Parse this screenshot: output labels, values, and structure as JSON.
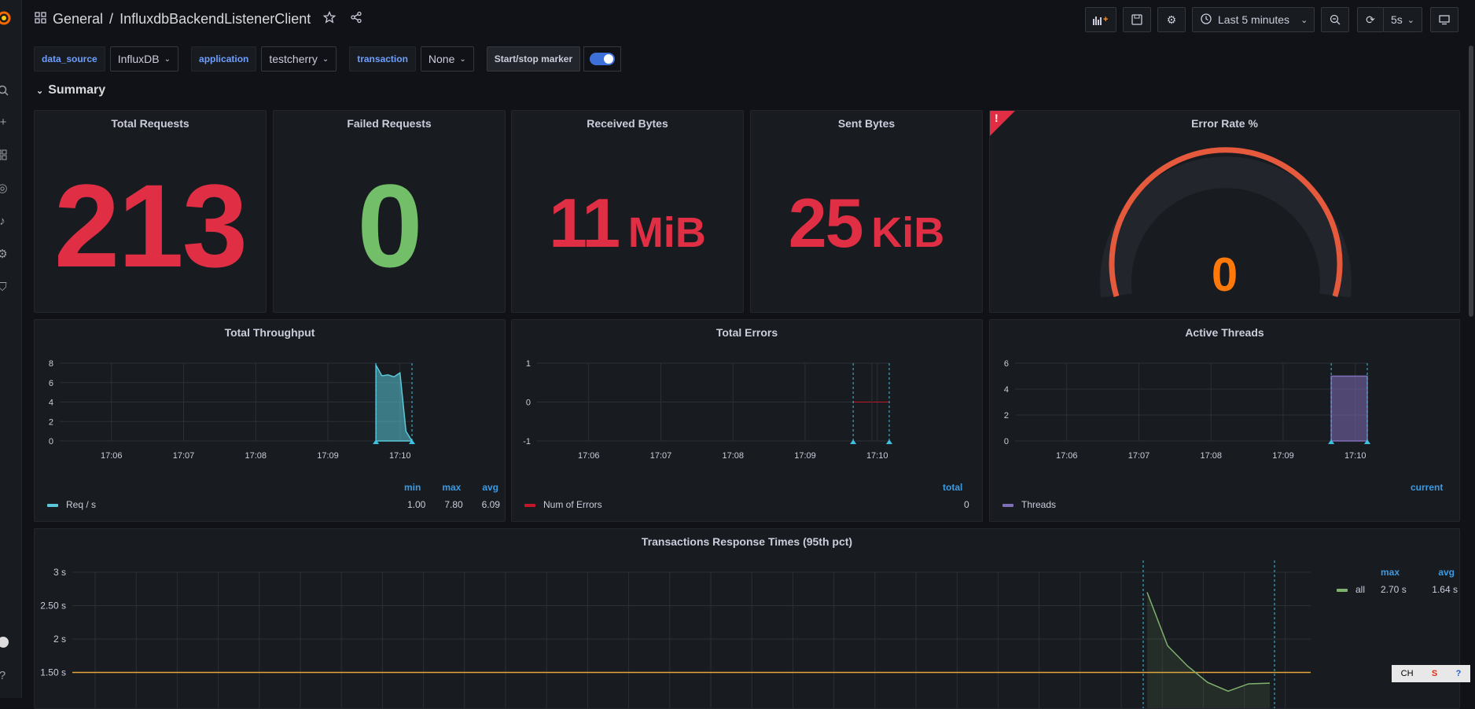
{
  "breadcrumb": {
    "folder": "General",
    "separator": "/",
    "dashboard": "InfluxdbBackendListenerClient"
  },
  "toolbar": {
    "time_range": "Last 5 minutes",
    "refresh": "5s"
  },
  "variables": [
    {
      "label": "data_source",
      "value": "InfluxDB"
    },
    {
      "label": "application",
      "value": "testcherry"
    },
    {
      "label": "transaction",
      "value": "None"
    }
  ],
  "marker": {
    "label": "Start/stop marker",
    "enabled": true
  },
  "row": {
    "title": "Summary"
  },
  "stats": {
    "total_requests": {
      "title": "Total Requests",
      "value": "213",
      "color": "#e02f44"
    },
    "failed_requests": {
      "title": "Failed Requests",
      "value": "0",
      "color": "#73bf69"
    },
    "received_bytes": {
      "title": "Received Bytes",
      "value": "11",
      "unit": "MiB",
      "color": "#e02f44"
    },
    "sent_bytes": {
      "title": "Sent Bytes",
      "value": "25",
      "unit": "KiB",
      "color": "#e02f44"
    },
    "error_rate": {
      "title": "Error Rate %",
      "value": "0",
      "color": "#ff780a",
      "alert_mark": "!"
    }
  },
  "throughput": {
    "title": "Total Throughput",
    "legend_headers": [
      "min",
      "max",
      "avg"
    ],
    "series_name": "Req / s",
    "legend_values": [
      "1.00",
      "7.80",
      "6.09"
    ]
  },
  "errors": {
    "title": "Total Errors",
    "legend_header": "total",
    "series_name": "Num of Errors",
    "legend_value": "0"
  },
  "threads": {
    "title": "Active Threads",
    "legend_header": "current",
    "series_name": "Threads"
  },
  "response": {
    "title": "Transactions Response Times (95th pct)",
    "legend_headers": [
      "max",
      "avg"
    ],
    "series_name": "all",
    "legend_values": [
      "2.70 s",
      "1.64 s"
    ]
  },
  "tray": {
    "ime": "CH",
    "s": "S",
    "help": "?"
  },
  "chart_data": [
    {
      "type": "area",
      "title": "Total Throughput",
      "x_ticks": [
        "17:06",
        "17:07",
        "17:08",
        "17:09",
        "17:10"
      ],
      "y_ticks": [
        "0",
        "2",
        "4",
        "6",
        "8"
      ],
      "ylim": [
        0,
        8
      ],
      "series": [
        {
          "name": "Req / s",
          "color": "#5ac8d8",
          "x": [
            "17:09:40",
            "17:09:45",
            "17:09:50",
            "17:09:55",
            "17:10:00",
            "17:10:05",
            "17:10:10"
          ],
          "values": [
            7.8,
            6.7,
            6.8,
            6.6,
            7.0,
            1.0,
            0
          ]
        }
      ]
    },
    {
      "type": "line",
      "title": "Total Errors",
      "x_ticks": [
        "17:06",
        "17:07",
        "17:08",
        "17:09",
        "17:10"
      ],
      "y_ticks": [
        "-1",
        "0",
        "1"
      ],
      "ylim": [
        -1,
        1
      ],
      "series": [
        {
          "name": "Num of Errors",
          "color": "#c4162a",
          "x": [
            "17:09:40",
            "17:10:10"
          ],
          "values": [
            0,
            0
          ]
        }
      ]
    },
    {
      "type": "area",
      "title": "Active Threads",
      "x_ticks": [
        "17:06",
        "17:07",
        "17:08",
        "17:09",
        "17:10"
      ],
      "y_ticks": [
        "0",
        "2",
        "4",
        "6"
      ],
      "ylim": [
        0,
        6
      ],
      "series": [
        {
          "name": "Threads",
          "color": "#806eb7",
          "x": [
            "17:09:40",
            "17:10:10"
          ],
          "values": [
            5,
            5
          ]
        }
      ]
    },
    {
      "type": "line",
      "title": "Transactions Response Times (95th pct)",
      "y_ticks": [
        "1.50 s",
        "2 s",
        "2.50 s",
        "3 s"
      ],
      "threshold": 1.5,
      "series": [
        {
          "name": "all",
          "color": "#7eb26d",
          "values": [
            2.7,
            1.9,
            1.6,
            1.35,
            1.22,
            1.33,
            1.34
          ]
        }
      ]
    }
  ]
}
